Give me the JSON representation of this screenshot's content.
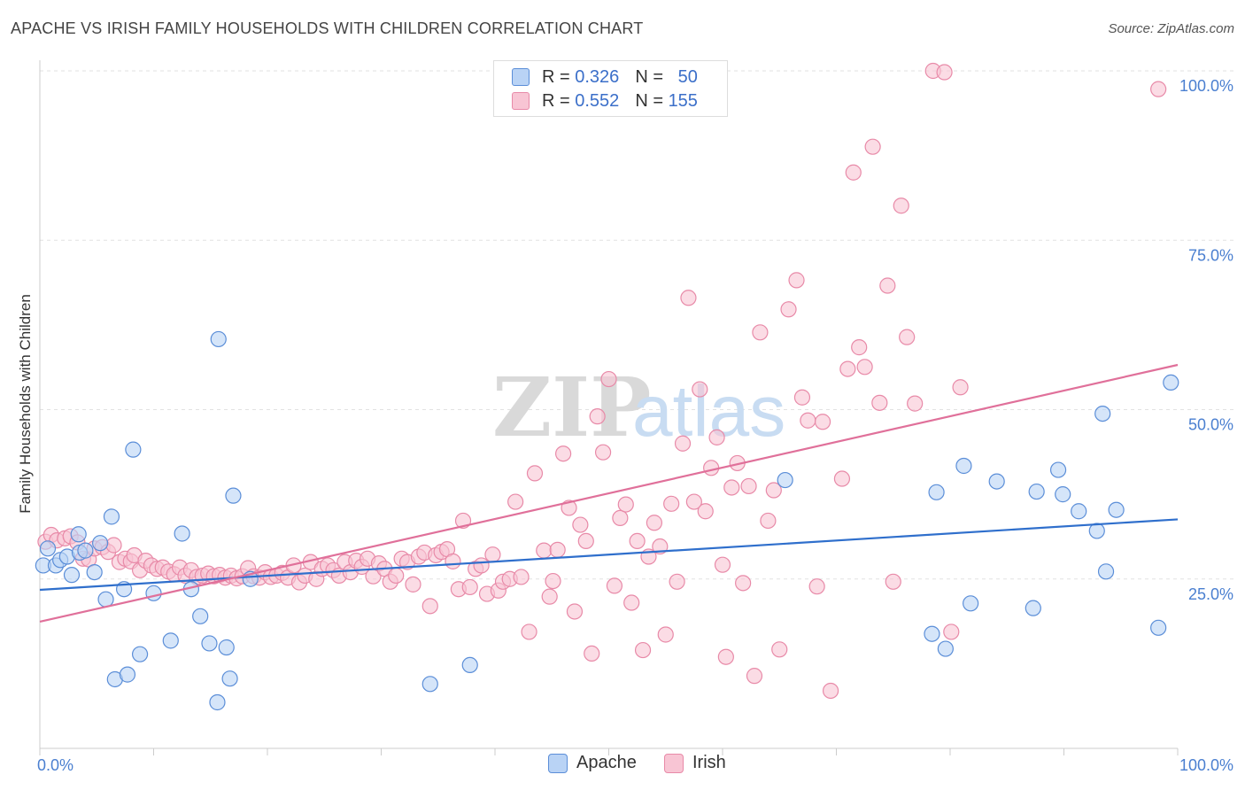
{
  "title": "APACHE VS IRISH FAMILY HOUSEHOLDS WITH CHILDREN CORRELATION CHART",
  "source": "Source: ZipAtlas.com",
  "legend": {
    "apache": {
      "r_label": "R =",
      "r_value": "0.326",
      "n_label": "N =",
      "n_value": "50"
    },
    "irish": {
      "r_label": "R =",
      "r_value": "0.552",
      "n_label": "N =",
      "n_value": "155"
    }
  },
  "colors": {
    "apache_fill": "#b9d3f5",
    "apache_stroke": "#5b8ed8",
    "apache_line": "#2f6fcc",
    "irish_fill": "#f8c5d4",
    "irish_stroke": "#e88aa8",
    "irish_line": "#e0709a",
    "axis_label": "#4a7fd0"
  },
  "chart_data": {
    "type": "scatter",
    "ylabel": "Family Households with Children",
    "xlim": [
      0,
      100
    ],
    "ylim": [
      0,
      100
    ],
    "x_tick_labels": [
      "0.0%",
      "100.0%"
    ],
    "y_tick_labels": [
      "25.0%",
      "50.0%",
      "75.0%",
      "100.0%"
    ],
    "y_ticks": [
      25,
      50,
      75,
      100
    ],
    "grid": true,
    "series": [
      {
        "name": "Apache",
        "points": [
          [
            0.3,
            27
          ],
          [
            0.7,
            29.5
          ],
          [
            1.4,
            27
          ],
          [
            1.8,
            27.8
          ],
          [
            2.4,
            28.3
          ],
          [
            2.8,
            25.6
          ],
          [
            3.4,
            31.6
          ],
          [
            3.5,
            28.9
          ],
          [
            4.0,
            29.2
          ],
          [
            4.8,
            26
          ],
          [
            5.3,
            30.3
          ],
          [
            5.8,
            22
          ],
          [
            6.3,
            34.2
          ],
          [
            6.6,
            10.2
          ],
          [
            7.4,
            23.5
          ],
          [
            7.7,
            10.9
          ],
          [
            8.2,
            44.1
          ],
          [
            8.8,
            13.9
          ],
          [
            10.0,
            22.9
          ],
          [
            11.5,
            15.9
          ],
          [
            12.5,
            31.7
          ],
          [
            13.3,
            23.5
          ],
          [
            14.1,
            19.5
          ],
          [
            14.9,
            15.5
          ],
          [
            15.6,
            6.8
          ],
          [
            15.7,
            60.4
          ],
          [
            16.4,
            14.9
          ],
          [
            16.7,
            10.3
          ],
          [
            17.0,
            37.3
          ],
          [
            18.5,
            25
          ],
          [
            34.3,
            9.5
          ],
          [
            37.8,
            12.3
          ],
          [
            65.5,
            39.6
          ],
          [
            78.4,
            16.9
          ],
          [
            78.8,
            37.8
          ],
          [
            79.6,
            14.7
          ],
          [
            81.2,
            41.7
          ],
          [
            81.8,
            21.4
          ],
          [
            84.1,
            39.4
          ],
          [
            87.3,
            20.7
          ],
          [
            87.6,
            37.9
          ],
          [
            89.5,
            41.1
          ],
          [
            89.9,
            37.5
          ],
          [
            91.3,
            35
          ],
          [
            92.9,
            32.1
          ],
          [
            93.4,
            49.4
          ],
          [
            93.7,
            26.1
          ],
          [
            94.6,
            35.2
          ],
          [
            98.3,
            17.8
          ],
          [
            99.4,
            54
          ]
        ]
      },
      {
        "name": "Irish",
        "points": [
          [
            0.5,
            30.5
          ],
          [
            1.0,
            31.5
          ],
          [
            1.5,
            30.7
          ],
          [
            2.2,
            31
          ],
          [
            2.7,
            31.3
          ],
          [
            3.3,
            30.4
          ],
          [
            3.8,
            28
          ],
          [
            4.3,
            27.9
          ],
          [
            4.8,
            29.5
          ],
          [
            5.5,
            29.7
          ],
          [
            6.0,
            29
          ],
          [
            6.5,
            30
          ],
          [
            7.0,
            27.5
          ],
          [
            7.5,
            28
          ],
          [
            8.0,
            27.6
          ],
          [
            8.3,
            28.5
          ],
          [
            8.8,
            26.3
          ],
          [
            9.3,
            27.7
          ],
          [
            9.8,
            27
          ],
          [
            10.3,
            26.5
          ],
          [
            10.8,
            26.7
          ],
          [
            11.3,
            26.1
          ],
          [
            11.8,
            25.7
          ],
          [
            12.3,
            26.7
          ],
          [
            12.8,
            25.5
          ],
          [
            13.3,
            26.3
          ],
          [
            13.8,
            25.3
          ],
          [
            14.3,
            25.5
          ],
          [
            14.8,
            25.8
          ],
          [
            15.3,
            25.4
          ],
          [
            15.8,
            25.6
          ],
          [
            16.3,
            25.2
          ],
          [
            16.8,
            25.5
          ],
          [
            17.3,
            25.1
          ],
          [
            17.8,
            25.4
          ],
          [
            18.3,
            26.6
          ],
          [
            18.8,
            25.4
          ],
          [
            19.3,
            25.2
          ],
          [
            19.8,
            26
          ],
          [
            20.3,
            25.3
          ],
          [
            20.8,
            25.5
          ],
          [
            21.3,
            25.9
          ],
          [
            21.8,
            25.2
          ],
          [
            22.3,
            27
          ],
          [
            22.8,
            24.5
          ],
          [
            23.3,
            25.5
          ],
          [
            23.8,
            27.5
          ],
          [
            24.3,
            25
          ],
          [
            24.8,
            26.5
          ],
          [
            25.3,
            27
          ],
          [
            25.8,
            26.3
          ],
          [
            26.3,
            25.5
          ],
          [
            26.8,
            27.5
          ],
          [
            27.3,
            26
          ],
          [
            27.8,
            27.7
          ],
          [
            28.3,
            26.8
          ],
          [
            28.8,
            28
          ],
          [
            29.3,
            25.4
          ],
          [
            29.8,
            27.3
          ],
          [
            30.3,
            26.5
          ],
          [
            30.8,
            24.6
          ],
          [
            31.3,
            25.5
          ],
          [
            31.8,
            28
          ],
          [
            32.3,
            27.5
          ],
          [
            32.8,
            24.2
          ],
          [
            33.3,
            28.3
          ],
          [
            33.8,
            28.9
          ],
          [
            34.3,
            21
          ],
          [
            34.8,
            28.5
          ],
          [
            35.3,
            29
          ],
          [
            35.8,
            29.4
          ],
          [
            36.3,
            27.6
          ],
          [
            36.8,
            23.5
          ],
          [
            37.2,
            33.6
          ],
          [
            37.8,
            23.8
          ],
          [
            38.3,
            26.5
          ],
          [
            38.8,
            27
          ],
          [
            39.3,
            22.8
          ],
          [
            39.8,
            28.6
          ],
          [
            40.3,
            23.3
          ],
          [
            40.7,
            24.6
          ],
          [
            41.3,
            25
          ],
          [
            41.8,
            36.4
          ],
          [
            42.3,
            25.3
          ],
          [
            43.0,
            17.2
          ],
          [
            43.5,
            40.6
          ],
          [
            44.3,
            29.2
          ],
          [
            44.8,
            22.4
          ],
          [
            45.1,
            24.7
          ],
          [
            45.5,
            29.3
          ],
          [
            46.0,
            43.5
          ],
          [
            46.5,
            35.5
          ],
          [
            47.0,
            20.2
          ],
          [
            47.5,
            33
          ],
          [
            48.0,
            30.6
          ],
          [
            48.5,
            14
          ],
          [
            49.0,
            49
          ],
          [
            49.5,
            43.7
          ],
          [
            50.0,
            54.5
          ],
          [
            50.5,
            24
          ],
          [
            51.0,
            34
          ],
          [
            51.5,
            36
          ],
          [
            52.0,
            21.5
          ],
          [
            52.5,
            30.6
          ],
          [
            53.0,
            14.5
          ],
          [
            53.5,
            28.3
          ],
          [
            54.0,
            33.3
          ],
          [
            54.5,
            29.8
          ],
          [
            55.0,
            16.8
          ],
          [
            55.5,
            36.1
          ],
          [
            56.0,
            24.6
          ],
          [
            56.5,
            45
          ],
          [
            57.0,
            66.5
          ],
          [
            57.5,
            36.4
          ],
          [
            58.0,
            53
          ],
          [
            58.5,
            35
          ],
          [
            59.0,
            41.4
          ],
          [
            59.5,
            45.9
          ],
          [
            60.0,
            27.1
          ],
          [
            60.3,
            13.5
          ],
          [
            60.8,
            38.5
          ],
          [
            61.3,
            42.1
          ],
          [
            61.8,
            24.4
          ],
          [
            62.3,
            38.7
          ],
          [
            62.8,
            10.7
          ],
          [
            63.3,
            61.4
          ],
          [
            64.0,
            33.6
          ],
          [
            64.5,
            38.1
          ],
          [
            65.0,
            14.6
          ],
          [
            65.8,
            64.8
          ],
          [
            66.5,
            69.1
          ],
          [
            67.0,
            51.8
          ],
          [
            67.5,
            48.4
          ],
          [
            68.3,
            23.9
          ],
          [
            68.8,
            48.2
          ],
          [
            69.5,
            8.5
          ],
          [
            70.5,
            39.8
          ],
          [
            71.0,
            56
          ],
          [
            71.5,
            85
          ],
          [
            72.0,
            59.2
          ],
          [
            72.5,
            56.3
          ],
          [
            73.2,
            88.8
          ],
          [
            73.8,
            51
          ],
          [
            74.5,
            68.3
          ],
          [
            75.0,
            24.6
          ],
          [
            75.7,
            80.1
          ],
          [
            76.2,
            60.7
          ],
          [
            76.9,
            50.9
          ],
          [
            78.5,
            100
          ],
          [
            79.5,
            99.8
          ],
          [
            80.1,
            17.2
          ],
          [
            80.9,
            53.3
          ],
          [
            98.3,
            97.3
          ]
        ]
      }
    ],
    "trendlines": [
      {
        "series": "Apache",
        "x": [
          0,
          100
        ],
        "y": [
          23.4,
          33.8
        ]
      },
      {
        "series": "Irish",
        "x": [
          0,
          100
        ],
        "y": [
          18.7,
          56.6
        ]
      }
    ]
  },
  "bottom_legend": {
    "apache": "Apache",
    "irish": "Irish"
  },
  "watermark": {
    "zip": "ZIP",
    "atlas": "atlas"
  }
}
